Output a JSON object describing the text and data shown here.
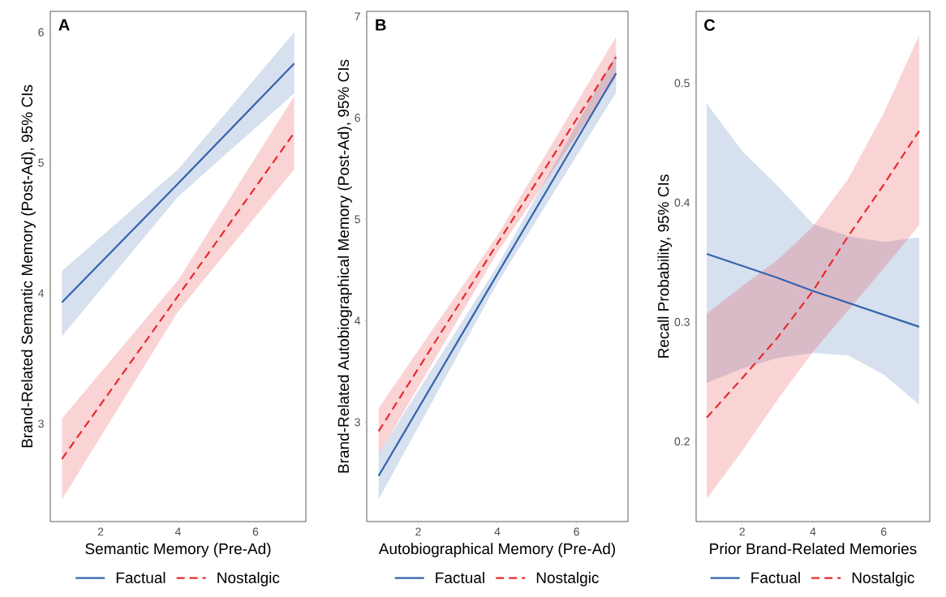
{
  "chart_data": [
    {
      "type": "line",
      "title": "A",
      "xlabel": "Semantic Memory (Pre-Ad)",
      "ylabel": "Brand-Related Semantic Memory (Post-Ad), 95% CIs",
      "xlim": [
        0.7,
        7.3
      ],
      "ylim": [
        2.25,
        6.16
      ],
      "xticks": [
        2,
        4,
        6
      ],
      "yticks": [
        3,
        4,
        5,
        6
      ],
      "grid": false,
      "legend": "bottom",
      "series": [
        {
          "name": "Factual",
          "color": "#3463ad",
          "line_style": "solid",
          "x": [
            1,
            4,
            7
          ],
          "values": [
            3.93,
            4.84,
            5.76
          ],
          "lower": [
            3.67,
            4.74,
            5.53
          ],
          "upper": [
            4.17,
            4.95,
            6.0
          ]
        },
        {
          "name": "Nostalgic",
          "color": "#e8292e",
          "line_style": "dashed",
          "x": [
            1,
            4,
            7
          ],
          "values": [
            2.73,
            3.98,
            5.23
          ],
          "lower": [
            2.42,
            3.86,
            4.95
          ],
          "upper": [
            3.04,
            4.1,
            5.51
          ]
        }
      ]
    },
    {
      "type": "line",
      "title": "B",
      "xlabel": "Autobiographical Memory (Pre-Ad)",
      "ylabel": "Brand-Related Autobiographical Memory (Post-Ad), 95% CIs",
      "xlim": [
        0.7,
        7.3
      ],
      "ylim": [
        2.02,
        7.05
      ],
      "xticks": [
        2,
        4,
        6
      ],
      "yticks": [
        3,
        4,
        5,
        6,
        7
      ],
      "grid": false,
      "legend": "bottom",
      "series": [
        {
          "name": "Factual",
          "color": "#3463ad",
          "line_style": "solid",
          "x": [
            1,
            4,
            7
          ],
          "values": [
            2.47,
            4.46,
            6.44
          ],
          "lower": [
            2.24,
            4.37,
            6.25
          ],
          "upper": [
            2.69,
            4.54,
            6.63
          ]
        },
        {
          "name": "Nostalgic",
          "color": "#e8292e",
          "line_style": "dashed",
          "x": [
            1,
            4,
            7
          ],
          "values": [
            2.91,
            4.76,
            6.6
          ],
          "lower": [
            2.68,
            4.67,
            6.4
          ],
          "upper": [
            3.14,
            4.84,
            6.8
          ]
        }
      ]
    },
    {
      "type": "line",
      "title": "C",
      "xlabel": "Prior Brand-Related Memories",
      "ylabel": "Recall Probability, 95% CIs",
      "xlim": [
        0.7,
        7.3
      ],
      "ylim": [
        0.133,
        0.56
      ],
      "xticks": [
        2,
        4,
        6
      ],
      "yticks": [
        0.2,
        0.3,
        0.4,
        0.5
      ],
      "grid": false,
      "legend": "bottom",
      "series": [
        {
          "name": "Factual",
          "color": "#3463ad",
          "line_style": "solid",
          "x": [
            1,
            2,
            3,
            4,
            5,
            6,
            7
          ],
          "values": [
            0.357,
            0.347,
            0.337,
            0.326,
            0.316,
            0.306,
            0.296
          ],
          "lower": [
            0.249,
            0.261,
            0.27,
            0.274,
            0.272,
            0.256,
            0.231
          ],
          "upper": [
            0.483,
            0.443,
            0.414,
            0.382,
            0.372,
            0.367,
            0.371
          ]
        },
        {
          "name": "Nostalgic",
          "color": "#e8292e",
          "line_style": "dashed",
          "x": [
            1,
            2,
            3,
            4,
            5,
            6,
            7
          ],
          "values": [
            0.22,
            0.253,
            0.287,
            0.326,
            0.372,
            0.415,
            0.46
          ],
          "lower": [
            0.152,
            0.192,
            0.235,
            0.275,
            0.31,
            0.345,
            0.381
          ],
          "upper": [
            0.307,
            0.33,
            0.352,
            0.38,
            0.42,
            0.475,
            0.54
          ]
        }
      ]
    }
  ]
}
